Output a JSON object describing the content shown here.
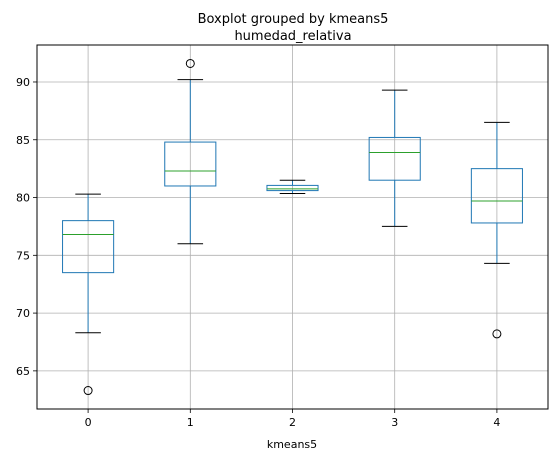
{
  "chart_data": {
    "type": "boxplot",
    "title": "Boxplot grouped by kmeans5",
    "subtitle": "humedad_relativa",
    "xlabel": "kmeans5",
    "ylabel": "",
    "categories": [
      "0",
      "1",
      "2",
      "3",
      "4"
    ],
    "ylim": [
      61.7,
      93.2
    ],
    "yticks": [
      65,
      70,
      75,
      80,
      85,
      90
    ],
    "grid": true,
    "boxes": [
      {
        "category": "0",
        "whislo": 68.3,
        "q1": 73.5,
        "med": 76.8,
        "q3": 78.0,
        "whishi": 80.3,
        "fliers": [
          63.3
        ]
      },
      {
        "category": "1",
        "whislo": 76.0,
        "q1": 81.0,
        "med": 82.3,
        "q3": 84.8,
        "whishi": 90.2,
        "fliers": [
          91.6
        ]
      },
      {
        "category": "2",
        "whislo": 80.35,
        "q1": 80.6,
        "med": 80.75,
        "q3": 81.05,
        "whishi": 81.5,
        "fliers": []
      },
      {
        "category": "3",
        "whislo": 77.5,
        "q1": 81.5,
        "med": 83.9,
        "q3": 85.2,
        "whishi": 89.3,
        "fliers": []
      },
      {
        "category": "4",
        "whislo": 74.3,
        "q1": 77.8,
        "med": 79.7,
        "q3": 82.5,
        "whishi": 86.5,
        "fliers": [
          68.2
        ]
      }
    ]
  },
  "colors": {
    "box": "#1f77b4",
    "median": "#2ca02c",
    "whisker_cap": "#000000",
    "grid": "#b0b0b0",
    "flier": "#000000"
  }
}
